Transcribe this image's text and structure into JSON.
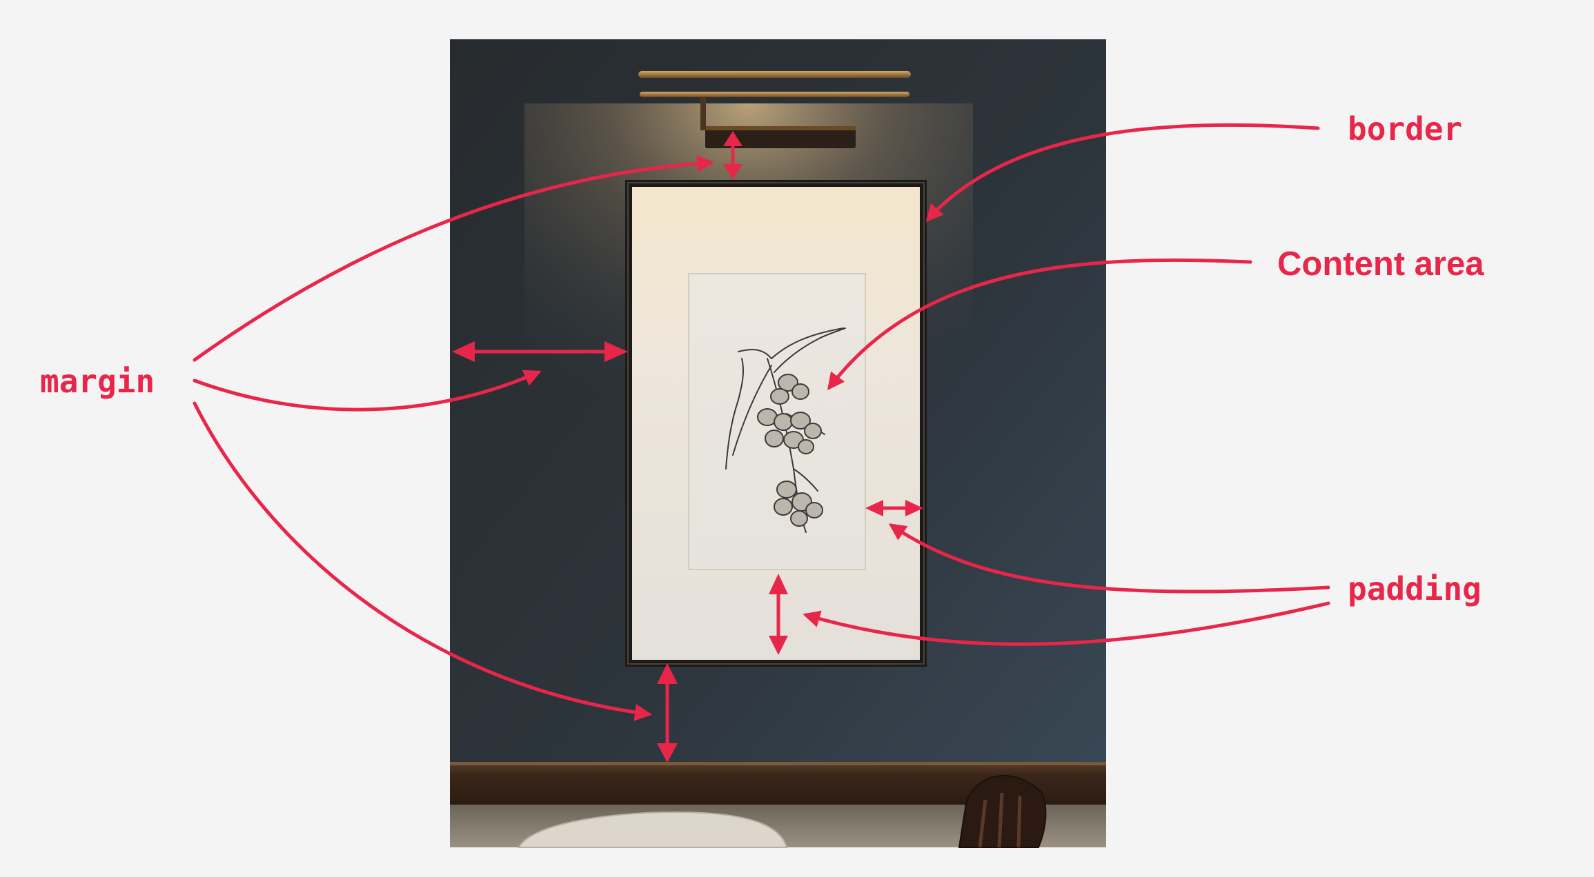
{
  "diagram": {
    "labels": {
      "border": "border",
      "content_area": "Content area",
      "margin": "margin",
      "padding": "padding"
    },
    "colors": {
      "annotation": "#e8264a",
      "page_background": "#f4f4f4",
      "wall": "#2d3339",
      "mat": "#efe8dd",
      "frame": "#1b1a18",
      "wainscot": "#3d2b1e",
      "floor": "#8f857a"
    },
    "icons": {
      "lamp": "picture-lamp-icon",
      "drawing": "botanical-drawing-icon",
      "table": "round-table-icon",
      "chair": "chair-icon"
    }
  }
}
